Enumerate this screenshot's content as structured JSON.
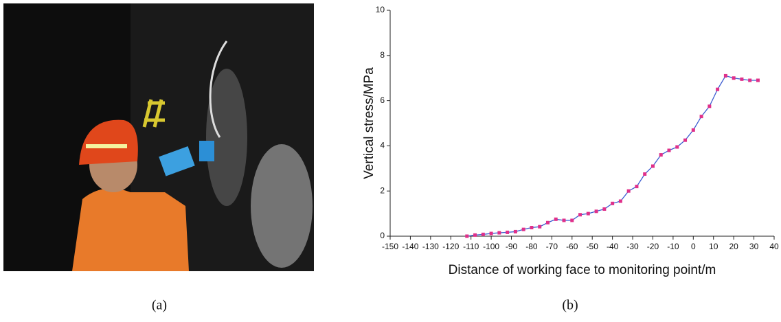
{
  "panel_labels": [
    "(a)",
    "(b)"
  ],
  "chart_data": {
    "type": "line",
    "x_label": "Distance of working face to monitoring point/m",
    "y_label": "Vertical stress/MPa",
    "x": [
      -112,
      -108,
      -104,
      -100,
      -96,
      -92,
      -88,
      -84,
      -80,
      -76,
      -72,
      -68,
      -64,
      -60,
      -56,
      -52,
      -48,
      -44,
      -40,
      -36,
      -32,
      -28,
      -24,
      -20,
      -16,
      -12,
      -8,
      -4,
      0,
      4,
      8,
      12,
      16,
      20,
      24,
      28,
      32
    ],
    "series": [
      {
        "color": "#3b5bd0",
        "marker_color": "#e0308a",
        "values": [
          0,
          0.05,
          0.08,
          0.12,
          0.15,
          0.17,
          0.2,
          0.3,
          0.38,
          0.42,
          0.6,
          0.75,
          0.7,
          0.7,
          0.95,
          1.0,
          1.1,
          1.2,
          1.45,
          1.55,
          2.0,
          2.2,
          2.75,
          3.1,
          3.6,
          3.8,
          3.95,
          4.25,
          4.7,
          5.3,
          5.75,
          6.5,
          7.1,
          7.0,
          6.95,
          6.9,
          6.9
        ]
      }
    ],
    "xlim": [
      -150,
      40
    ],
    "xticks": [
      -150,
      -140,
      -130,
      -120,
      -110,
      -100,
      -90,
      -80,
      -70,
      -60,
      -50,
      -40,
      -30,
      -20,
      -10,
      0,
      10,
      20,
      30,
      40
    ],
    "ylim": [
      0,
      10
    ],
    "yticks": [
      0,
      2,
      4,
      6,
      8,
      10
    ]
  }
}
